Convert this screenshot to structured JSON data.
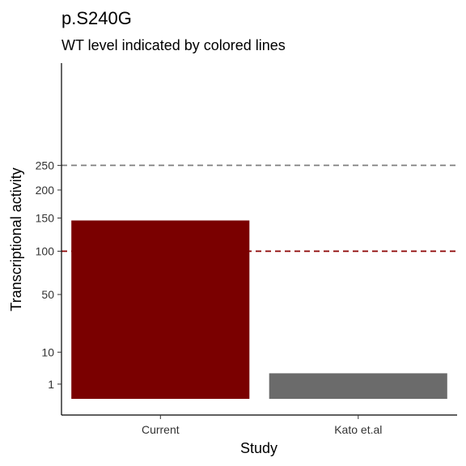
{
  "chart_data": {
    "type": "bar",
    "title": "p.S240G",
    "subtitle": "WT level indicated by colored lines",
    "xlabel": "Study",
    "ylabel": "Transcriptional activity",
    "categories": [
      "Current",
      "Kato et.al"
    ],
    "values": [
      146,
      3
    ],
    "bar_colors": [
      "#7a0000",
      "#6b6b6b"
    ],
    "y_scale": "sqrt",
    "y_ticks": [
      1,
      10,
      50,
      100,
      150,
      200,
      250
    ],
    "y_tick_labels": [
      "1",
      "10",
      "50",
      "100",
      "150",
      "200",
      "250"
    ],
    "ylim": [
      0,
      338
    ],
    "reference_lines": [
      {
        "value": 250,
        "color": "#7f7f7f",
        "style": "dashed"
      },
      {
        "value": 100,
        "color": "#8b0000",
        "style": "dashed"
      }
    ],
    "grid": false,
    "legend": "none"
  }
}
